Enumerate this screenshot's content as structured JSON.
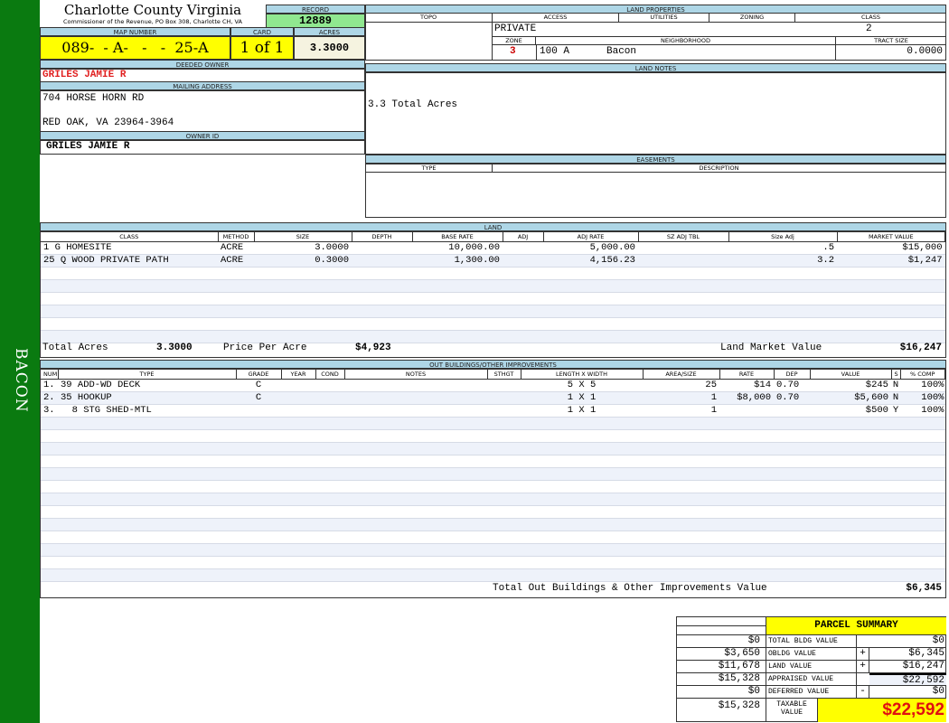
{
  "sidebar": {
    "label": "BACON"
  },
  "header": {
    "title": "Charlotte County Virginia",
    "subtitle": "Commissioner of the Revenue, PO Box 308, Charlotte CH, VA",
    "record_label": "RECORD",
    "record": "12889",
    "map_label": "MAP NUMBER",
    "map_number": "089-  - A-   -   -  25-A",
    "card_label": "CARD",
    "card": "1 of 1",
    "acres_label": "ACRES",
    "acres": "3.3000"
  },
  "owner": {
    "deeded_label": "DEEDED OWNER",
    "deeded": "GRILES JAMIE R",
    "mailing_label": "MAILING ADDRESS",
    "address1": "704 HORSE HORN RD",
    "address2": "RED OAK, VA 23964-3964",
    "owner_id_label": "OWNER ID",
    "owner_id": "GRILES JAMIE R"
  },
  "land_properties": {
    "title": "LAND PROPERTIES",
    "topo_label": "TOPO",
    "access_label": "ACCESS",
    "utilities_label": "UTILITIES",
    "zoning_label": "ZONING",
    "class_label": "CLASS",
    "access": "PRIVATE",
    "class": "2",
    "zone_label": "ZONE",
    "neighborhood_label": "NEIGHBORHOOD",
    "tract_label": "TRACT SIZE",
    "zone": "3",
    "neighborhood_code": "100 A",
    "neighborhood": "Bacon",
    "tract_size": "0.0000"
  },
  "land_notes": {
    "title": "LAND NOTES",
    "text": "3.3 Total Acres"
  },
  "easements": {
    "title": "EASEMENTS",
    "type_label": "TYPE",
    "description_label": "DESCRIPTION"
  },
  "land": {
    "title": "LAND",
    "columns": [
      "CLASS",
      "METHOD",
      "SIZE",
      "DEPTH",
      "BASE RATE",
      "ADJ",
      "ADJ RATE",
      "SZ ADJ TBL",
      "Size Adj",
      "MARKET VALUE"
    ],
    "rows": [
      [
        "1 G HOMESITE",
        "ACRE",
        "3.0000",
        "",
        "10,000.00",
        "",
        "5,000.00",
        "",
        ".5",
        "$15,000"
      ],
      [
        "25 Q WOOD PRIVATE PATH",
        "ACRE",
        "0.3000",
        "",
        "1,300.00",
        "",
        "4,156.23",
        "",
        "3.2",
        "$1,247"
      ]
    ],
    "total_acres_label": "Total Acres",
    "total_acres": "3.3000",
    "price_label": "Price Per Acre",
    "price": "$4,923",
    "market_label": "Land Market Value",
    "market": "$16,247"
  },
  "outbuildings": {
    "title": "OUT BUILDINGS/OTHER IMPROVEMENTS",
    "columns": [
      "NUM",
      "TYPE",
      "GRADE",
      "YEAR",
      "COND",
      "NOTES",
      "STHGT",
      "LENGTH X WIDTH",
      "AREA/SIZE",
      "RATE",
      "DEP",
      "VALUE",
      "S",
      "% COMP"
    ],
    "rows": [
      [
        "1.",
        "39 ADD-WD DECK",
        "C",
        "",
        "",
        "",
        "",
        "5 X 5",
        "25",
        "$14",
        "0.70",
        "$245",
        "N",
        "100%"
      ],
      [
        "2.",
        "35 HOOKUP",
        "C",
        "",
        "",
        "",
        "",
        "1 X 1",
        "1",
        "$8,000",
        "0.70",
        "$5,600",
        "N",
        "100%"
      ],
      [
        "3.",
        "  8 STG SHED-MTL",
        "",
        "",
        "",
        "",
        "",
        "1 X 1",
        "1",
        "",
        "",
        "$500",
        "Y",
        "100%"
      ]
    ],
    "total_label": "Total Out Buildings & Other Improvements Value",
    "total": "$6,345"
  },
  "summary": {
    "title": "PARCEL SUMMARY",
    "rows": [
      {
        "prior": "$0",
        "label": "TOTAL BLDG VALUE",
        "op": "",
        "value": "$0"
      },
      {
        "prior": "$3,650",
        "label": "OBLDG VALUE",
        "op": "+",
        "value": "$6,345"
      },
      {
        "prior": "$11,678",
        "label": "LAND VALUE",
        "op": "+",
        "value": "$16,247"
      },
      {
        "prior": "$15,328",
        "label": "APPRAISED VALUE",
        "op": "",
        "value": "$22,592"
      },
      {
        "prior": "$0",
        "label": "DEFERRED VALUE",
        "op": "-",
        "value": "$0"
      }
    ],
    "taxable_prior": "$15,328",
    "taxable_label": "TAXABLE VALUE",
    "taxable": "$22,592"
  },
  "colors": {
    "sidebar": "#0a7a10",
    "header": "#aed6e6",
    "highlight": "#ffff00",
    "record": "#90e890",
    "owner": "#e02020"
  }
}
